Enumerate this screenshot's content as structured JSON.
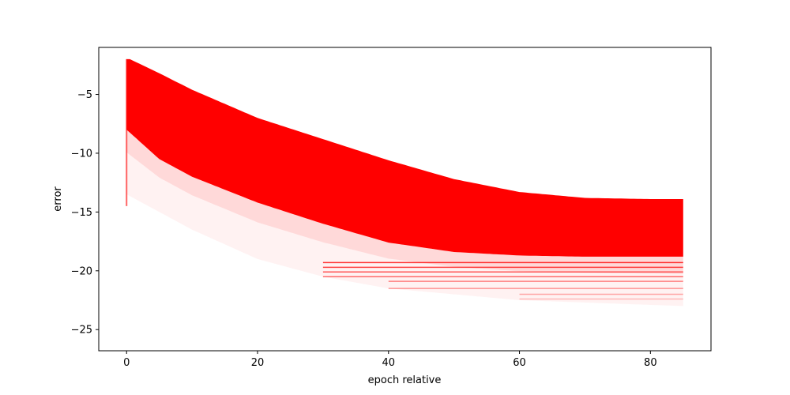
{
  "chart_data": {
    "type": "scatter",
    "title": "",
    "xlabel": "epoch relative",
    "ylabel": "error",
    "xlim": [
      -4.25,
      89.25
    ],
    "ylim": [
      -26.8,
      -1.0
    ],
    "x_ticks": [
      0,
      20,
      40,
      60,
      80
    ],
    "x_tick_labels": [
      "0",
      "20",
      "40",
      "60",
      "80"
    ],
    "y_ticks": [
      -5,
      -10,
      -15,
      -20,
      -25
    ],
    "y_tick_labels": [
      "−5",
      "−10",
      "−15",
      "−20",
      "−25"
    ],
    "grid": false,
    "legend": "none",
    "color": "#ff0000",
    "series": [
      {
        "dense_band": {
          "x_range": [
            0,
            85
          ],
          "upper_envelope": [
            [
              0,
              -2.0
            ],
            [
              0.5,
              -2.0
            ],
            [
              5,
              -3.2
            ],
            [
              10,
              -4.6
            ],
            [
              20,
              -7.0
            ],
            [
              30,
              -8.8
            ],
            [
              40,
              -10.6
            ],
            [
              50,
              -12.2
            ],
            [
              60,
              -13.3
            ],
            [
              70,
              -13.8
            ],
            [
              80,
              -13.9
            ],
            [
              85,
              -13.9
            ]
          ],
          "lower_envelope": [
            [
              0,
              -8.0
            ],
            [
              5,
              -10.5
            ],
            [
              10,
              -12.0
            ],
            [
              20,
              -14.2
            ],
            [
              30,
              -16.0
            ],
            [
              40,
              -17.6
            ],
            [
              50,
              -18.4
            ],
            [
              60,
              -18.7
            ],
            [
              70,
              -18.8
            ],
            [
              80,
              -18.8
            ],
            [
              85,
              -18.8
            ]
          ]
        },
        "faint_tail": {
          "lower_envelope": [
            [
              0,
              -13.5
            ],
            [
              10,
              -16.5
            ],
            [
              20,
              -19.0
            ],
            [
              30,
              -20.5
            ],
            [
              40,
              -21.5
            ],
            [
              60,
              -22.5
            ],
            [
              85,
              -23.0
            ]
          ]
        },
        "horizontal_streaks_y": [
          -19.3,
          -19.7,
          -20.1,
          -20.5,
          -20.9,
          -21.5,
          -22.0,
          -22.4
        ]
      }
    ]
  }
}
